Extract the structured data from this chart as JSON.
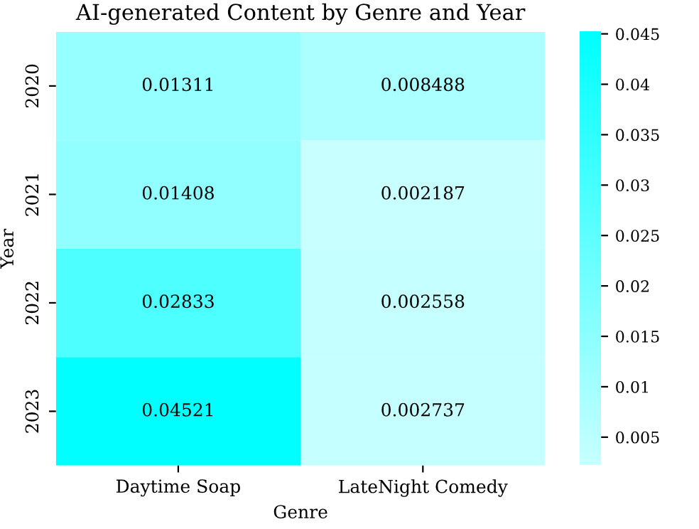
{
  "chart_data": {
    "type": "heatmap",
    "title": "AI-generated Content by Genre and Year",
    "xlabel": "Genre",
    "ylabel": "Year",
    "categories": [
      "Daytime Soap",
      "LateNight Comedy"
    ],
    "y_categories": [
      "2020",
      "2021",
      "2022",
      "2023"
    ],
    "cells": [
      [
        0.01311,
        0.008488
      ],
      [
        0.01408,
        0.002187
      ],
      [
        0.02833,
        0.002558
      ],
      [
        0.04521,
        0.002737
      ]
    ],
    "data_labels": true,
    "colors": [
      "#c8ffff",
      "#00ffff"
    ],
    "clim": [
      0.002187,
      0.04521
    ],
    "cticks": [
      0.005,
      0.01,
      0.015,
      0.02,
      0.025,
      0.03,
      0.035,
      0.04,
      0.045
    ]
  }
}
